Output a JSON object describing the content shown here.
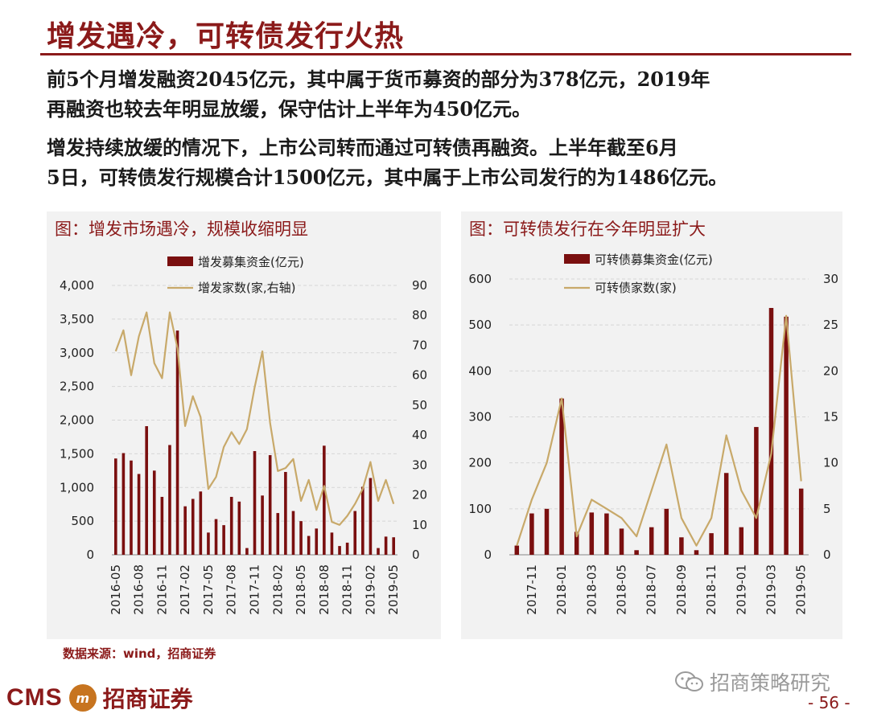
{
  "header": {
    "title": "增发遇冷，可转债发行火热"
  },
  "body": {
    "para1_line1": "前5个月增发融资2045亿元，其中属于货币募资的部分为378亿元，2019年",
    "para1_line2": "再融资也较去年明显放缓，保守估计上半年为450亿元。",
    "para2_line1": "增发持续放缓的情况下，上市公司转而通过可转债再融资。上半年截至6月",
    "para2_line2": "5日，可转债发行规模合计1500亿元，其中属于上市公司发行的为1486亿元。"
  },
  "footer": {
    "source": "数据来源：wind，招商证券",
    "logo_en": "CMS",
    "logo_mark": "m",
    "logo_cn": "招商证券",
    "wechat": "招商策略研究",
    "page": "- 56 -"
  },
  "colors": {
    "bar": "#7a0f0f",
    "line": "#c8a96a",
    "accent": "#8b1a1a"
  },
  "chart_data": [
    {
      "type": "bar+line",
      "title": "图：增发市场遇冷，规模收缩明显",
      "legend": [
        "增发募集资金(亿元)",
        "增发家数(家,右轴)"
      ],
      "y_left": {
        "min": 0,
        "max": 4000,
        "ticks": [
          0,
          500,
          1000,
          1500,
          2000,
          2500,
          3000,
          3500,
          4000
        ],
        "tick_labels": [
          "0",
          "500",
          "1,000",
          "1,500",
          "2,000",
          "2,500",
          "3,000",
          "3,500",
          "4,000"
        ]
      },
      "y_right": {
        "min": 0,
        "max": 90,
        "ticks": [
          0,
          10,
          20,
          30,
          40,
          50,
          60,
          70,
          80,
          90
        ]
      },
      "x_tick_labels": [
        "2016-05",
        "2016-08",
        "2016-11",
        "2017-02",
        "2017-05",
        "2017-08",
        "2017-11",
        "2018-02",
        "2018-05",
        "2018-08",
        "2018-11",
        "2019-02",
        "2019-05"
      ],
      "categories": [
        "2016-05",
        "2016-06",
        "2016-07",
        "2016-08",
        "2016-09",
        "2016-10",
        "2016-11",
        "2016-12",
        "2017-01",
        "2017-02",
        "2017-03",
        "2017-04",
        "2017-05",
        "2017-06",
        "2017-07",
        "2017-08",
        "2017-09",
        "2017-10",
        "2017-11",
        "2017-12",
        "2018-01",
        "2018-02",
        "2018-03",
        "2018-04",
        "2018-05",
        "2018-06",
        "2018-07",
        "2018-08",
        "2018-09",
        "2018-10",
        "2018-11",
        "2018-12",
        "2019-01",
        "2019-02",
        "2019-03",
        "2019-04",
        "2019-05"
      ],
      "series": [
        {
          "name": "增发募集资金(亿元)",
          "kind": "bar",
          "axis": "left",
          "values": [
            1430,
            1510,
            1400,
            1200,
            1910,
            1250,
            860,
            1630,
            3330,
            720,
            830,
            940,
            330,
            530,
            440,
            860,
            790,
            100,
            1540,
            880,
            1480,
            620,
            1230,
            650,
            500,
            280,
            390,
            1620,
            330,
            130,
            180,
            650,
            1010,
            1140,
            100,
            270,
            260
          ]
        },
        {
          "name": "增发家数(家,右轴)",
          "kind": "line",
          "axis": "right",
          "values": [
            68,
            75,
            60,
            73,
            81,
            64,
            59,
            81,
            69,
            43,
            53,
            46,
            22,
            26,
            36,
            41,
            37,
            42,
            56,
            68,
            44,
            28,
            29,
            32,
            18,
            25,
            15,
            23,
            11,
            10,
            13,
            17,
            22,
            31,
            18,
            25,
            17
          ]
        }
      ]
    },
    {
      "type": "bar+line",
      "title": "图：可转债发行在今年明显扩大",
      "legend": [
        "可转债募集资金(亿元)",
        "可转债家数(家)"
      ],
      "y_left": {
        "min": 0,
        "max": 600,
        "ticks": [
          0,
          100,
          200,
          300,
          400,
          500,
          600
        ]
      },
      "y_right": {
        "min": 0,
        "max": 30,
        "ticks": [
          0,
          5,
          10,
          15,
          20,
          25,
          30
        ]
      },
      "x_tick_labels": [
        "2017-11",
        "2018-01",
        "2018-03",
        "2018-05",
        "2018-07",
        "2018-09",
        "2018-11",
        "2019-01",
        "2019-03",
        "2019-05"
      ],
      "categories": [
        "2017-10",
        "2017-11",
        "2017-12",
        "2018-01",
        "2018-02",
        "2018-03",
        "2018-04",
        "2018-05",
        "2018-06",
        "2018-07",
        "2018-08",
        "2018-09",
        "2018-10",
        "2018-11",
        "2018-12",
        "2019-01",
        "2019-02",
        "2019-03",
        "2019-04",
        "2019-05"
      ],
      "series": [
        {
          "name": "可转债募集资金(亿元)",
          "kind": "bar",
          "axis": "left",
          "values": [
            20,
            90,
            100,
            340,
            50,
            92,
            90,
            57,
            10,
            60,
            100,
            38,
            10,
            47,
            178,
            60,
            278,
            537,
            518,
            144
          ]
        },
        {
          "name": "可转债家数(家)",
          "kind": "line",
          "axis": "right",
          "values": [
            1,
            6,
            10,
            17,
            2,
            6,
            5,
            4,
            2,
            7,
            12,
            4,
            1,
            4,
            13,
            7,
            4,
            11,
            26,
            8
          ]
        }
      ]
    }
  ]
}
